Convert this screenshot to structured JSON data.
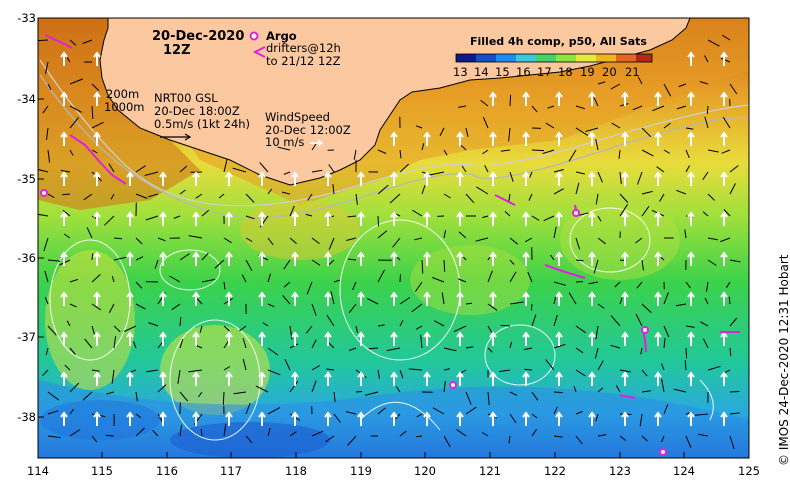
{
  "map": {
    "date": "20-Dec-2020",
    "time": "12Z",
    "legend": {
      "argo_label": "Argo",
      "drifters_line1": "drifters@12h",
      "drifters_line2": "to 21/12 12Z",
      "colorbar_title": "Filled 4h comp, p50, All Sats",
      "colorbar_ticks": [
        "13",
        "14",
        "15",
        "16",
        "17",
        "18",
        "19",
        "20",
        "21"
      ],
      "colorbar_colors": [
        "#0a1c8c",
        "#1450c8",
        "#1e8cf0",
        "#3cc8dc",
        "#46d264",
        "#8ce63c",
        "#e6ea3c",
        "#f0b41e",
        "#e6641e",
        "#b42814"
      ]
    },
    "isobaths": {
      "a": "200m",
      "b": "1000m"
    },
    "current_ref": {
      "line1": "NRT00 GSL",
      "line2": "20-Dec 18:00Z",
      "line3": "0.5m/s (1kt 24h)"
    },
    "wind_ref": {
      "line1": "WindSpeed",
      "line2": "20-Dec 12:00Z",
      "line3": "10 m/s"
    },
    "y_ticks": [
      "-33",
      "-34",
      "-35",
      "-36",
      "-37",
      "-38"
    ],
    "x_ticks": [
      "114",
      "115",
      "116",
      "117",
      "118",
      "119",
      "120",
      "121",
      "122",
      "123",
      "124",
      "125"
    ],
    "credit": "© IMOS 24-Dec-2020 12:31 Hobart",
    "colors": {
      "land": "#fbc8a0",
      "argo": "#e020e0",
      "drifter": "#e020e0"
    }
  }
}
